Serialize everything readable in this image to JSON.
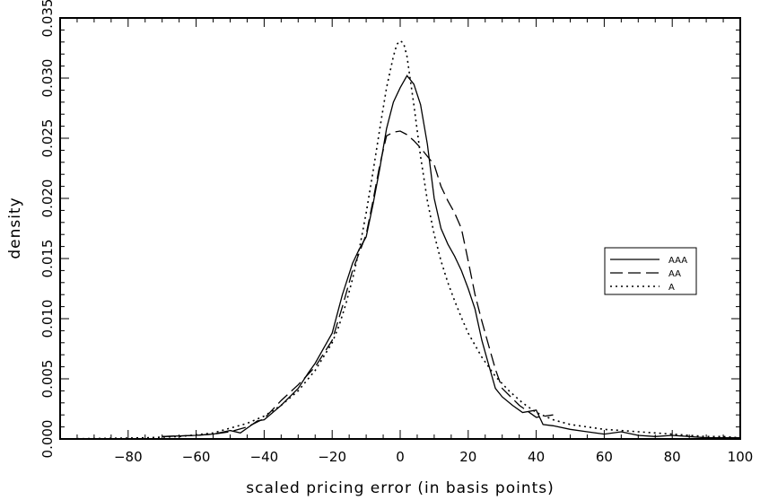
{
  "chart_data": {
    "type": "line",
    "title": "",
    "xlabel": "scaled pricing error (in basis points)",
    "ylabel": "density",
    "xlim": [
      -100,
      100
    ],
    "ylim": [
      0,
      0.035
    ],
    "xticks": [
      -80,
      -60,
      -40,
      -20,
      0,
      20,
      40,
      60,
      80,
      100
    ],
    "xtick_labels": [
      "−80",
      "−60",
      "−40",
      "−20",
      "0",
      "20",
      "40",
      "60",
      "80",
      "100"
    ],
    "yticks": [
      0,
      0.005,
      0.01,
      0.015,
      0.02,
      0.025,
      0.03,
      0.035
    ],
    "ytick_labels": [
      "0.000",
      "0.005",
      "0.010",
      "0.015",
      "0.020",
      "0.025",
      "0.030",
      "0.035"
    ],
    "grid": false,
    "legend_position": "right",
    "series": [
      {
        "name": "AAA",
        "style": "solid",
        "color": "#000000",
        "x": [
          -70,
          -60,
          -55,
          -50,
          -47,
          -42,
          -40,
          -35,
          -30,
          -27,
          -25,
          -20,
          -17,
          -14,
          -12,
          -10,
          -8,
          -6,
          -4,
          -2,
          0,
          2,
          4,
          6,
          8,
          10,
          12,
          14,
          16,
          18,
          20,
          22,
          24,
          26,
          28,
          30,
          33,
          36,
          40,
          42,
          45,
          50,
          55,
          60,
          65,
          70,
          75,
          80,
          85,
          90,
          95,
          100
        ],
        "y": [
          0.0002,
          0.0003,
          0.0004,
          0.0007,
          0.0005,
          0.0015,
          0.0016,
          0.0028,
          0.0042,
          0.0055,
          0.0063,
          0.0088,
          0.012,
          0.0146,
          0.0158,
          0.0168,
          0.0195,
          0.0225,
          0.0258,
          0.028,
          0.0292,
          0.0302,
          0.0295,
          0.0278,
          0.0245,
          0.02,
          0.0175,
          0.0162,
          0.0152,
          0.014,
          0.0125,
          0.0108,
          0.0082,
          0.0062,
          0.0042,
          0.0035,
          0.0028,
          0.0022,
          0.0024,
          0.0012,
          0.0011,
          0.0008,
          0.0006,
          0.0004,
          0.0006,
          0.0003,
          0.0002,
          0.0003,
          0.0002,
          0.0001,
          0.0001,
          0.0001
        ]
      },
      {
        "name": "AA",
        "style": "dashed",
        "color": "#000000",
        "x": [
          -70,
          -60,
          -55,
          -50,
          -45,
          -40,
          -35,
          -30,
          -25,
          -20,
          -17,
          -14,
          -12,
          -10,
          -8,
          -6,
          -4,
          -2,
          0,
          2,
          4,
          6,
          8,
          10,
          12,
          14,
          16,
          18,
          20,
          22,
          24,
          26,
          28,
          30,
          35,
          40,
          45
        ],
        "y": [
          0.0002,
          0.0003,
          0.0004,
          0.0006,
          0.001,
          0.0017,
          0.0032,
          0.0045,
          0.006,
          0.0082,
          0.011,
          0.014,
          0.0155,
          0.017,
          0.0198,
          0.0228,
          0.0252,
          0.0255,
          0.0256,
          0.0253,
          0.0248,
          0.0242,
          0.0235,
          0.0228,
          0.021,
          0.0198,
          0.0188,
          0.0175,
          0.0148,
          0.012,
          0.0098,
          0.0078,
          0.0058,
          0.0042,
          0.0028,
          0.0018,
          0.002
        ]
      },
      {
        "name": "A",
        "style": "dotted",
        "color": "#000000",
        "x": [
          -95,
          -85,
          -75,
          -65,
          -55,
          -45,
          -40,
          -35,
          -30,
          -25,
          -20,
          -18,
          -16,
          -14,
          -12,
          -10,
          -8,
          -6,
          -4,
          -2,
          -1,
          0,
          1,
          2,
          4,
          6,
          8,
          10,
          12,
          14,
          16,
          18,
          20,
          24,
          28,
          32,
          36,
          40,
          45,
          50,
          55,
          60,
          65,
          70,
          75,
          80,
          85,
          90,
          95,
          100
        ],
        "y": [
          2e-05,
          5e-05,
          0.0001,
          0.0002,
          0.0005,
          0.0013,
          0.0019,
          0.0028,
          0.004,
          0.0057,
          0.008,
          0.0094,
          0.0112,
          0.0133,
          0.0158,
          0.0188,
          0.0222,
          0.0258,
          0.0292,
          0.0318,
          0.0328,
          0.0331,
          0.0329,
          0.0318,
          0.0278,
          0.0235,
          0.0198,
          0.017,
          0.0148,
          0.013,
          0.0115,
          0.0101,
          0.0088,
          0.0068,
          0.0052,
          0.004,
          0.003,
          0.0022,
          0.0016,
          0.0012,
          0.001,
          0.0008,
          0.0007,
          0.0006,
          0.0005,
          0.0004,
          0.0003,
          0.0002,
          0.0002,
          0.0001
        ]
      }
    ]
  }
}
